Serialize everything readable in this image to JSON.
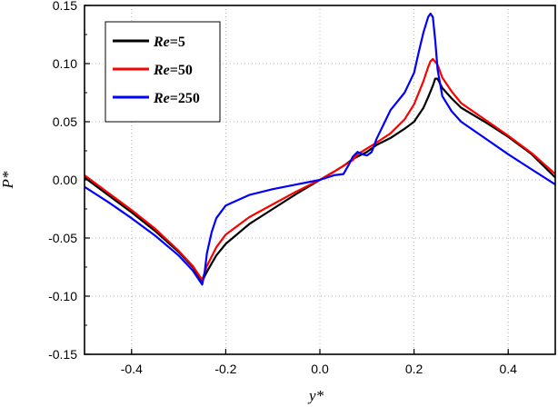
{
  "chart_data": {
    "type": "line",
    "xlabel": "y*",
    "ylabel": "P*",
    "xlim": [
      -0.5,
      0.5
    ],
    "ylim": [
      -0.15,
      0.15
    ],
    "xticks": [
      -0.4,
      -0.2,
      0.0,
      0.2,
      0.4
    ],
    "xtick_labels": [
      "-0.4",
      "-0.2",
      "0.0",
      "0.2",
      "0.4"
    ],
    "yticks": [
      -0.15,
      -0.1,
      -0.05,
      0.0,
      0.05,
      0.1,
      0.15
    ],
    "ytick_labels": [
      "-0.15",
      "-0.10",
      "-0.05",
      "0.00",
      "0.05",
      "0.10",
      "0.15"
    ],
    "grid": true,
    "legend_position": "top-left",
    "series": [
      {
        "name": "Re=5",
        "name_parts": [
          "Re",
          "=5"
        ],
        "color": "#000000",
        "x": [
          -0.5,
          -0.45,
          -0.4,
          -0.35,
          -0.3,
          -0.27,
          -0.25,
          -0.24,
          -0.22,
          -0.2,
          -0.15,
          -0.1,
          -0.05,
          0.0,
          0.03,
          0.05,
          0.07,
          0.09,
          0.1,
          0.12,
          0.15,
          0.18,
          0.2,
          0.22,
          0.23,
          0.24,
          0.245,
          0.25,
          0.26,
          0.28,
          0.3,
          0.35,
          0.4,
          0.45,
          0.5
        ],
        "y": [
          0.002,
          -0.013,
          -0.028,
          -0.044,
          -0.062,
          -0.075,
          -0.087,
          -0.079,
          -0.065,
          -0.055,
          -0.038,
          -0.025,
          -0.012,
          0.0,
          0.007,
          0.012,
          0.018,
          0.022,
          0.024,
          0.03,
          0.036,
          0.044,
          0.05,
          0.062,
          0.071,
          0.081,
          0.087,
          0.087,
          0.079,
          0.07,
          0.062,
          0.05,
          0.037,
          0.022,
          0.002
        ]
      },
      {
        "name": "Re=50",
        "name_parts": [
          "Re",
          "=50"
        ],
        "color": "#ff0000",
        "x": [
          -0.5,
          -0.45,
          -0.4,
          -0.35,
          -0.3,
          -0.27,
          -0.25,
          -0.24,
          -0.22,
          -0.2,
          -0.15,
          -0.1,
          -0.05,
          0.0,
          0.03,
          0.05,
          0.07,
          0.08,
          0.1,
          0.12,
          0.15,
          0.18,
          0.2,
          0.22,
          0.23,
          0.235,
          0.24,
          0.25,
          0.26,
          0.28,
          0.3,
          0.35,
          0.4,
          0.45,
          0.5
        ],
        "y": [
          0.004,
          -0.011,
          -0.026,
          -0.042,
          -0.061,
          -0.074,
          -0.086,
          -0.074,
          -0.058,
          -0.047,
          -0.032,
          -0.021,
          -0.01,
          0.0,
          0.007,
          0.012,
          0.017,
          0.022,
          0.027,
          0.032,
          0.04,
          0.052,
          0.065,
          0.085,
          0.097,
          0.102,
          0.104,
          0.099,
          0.088,
          0.076,
          0.066,
          0.052,
          0.038,
          0.023,
          0.005
        ]
      },
      {
        "name": "Re=250",
        "name_parts": [
          "Re",
          "=250"
        ],
        "color": "#0000ff",
        "x": [
          -0.5,
          -0.45,
          -0.4,
          -0.35,
          -0.3,
          -0.27,
          -0.25,
          -0.245,
          -0.24,
          -0.23,
          -0.22,
          -0.2,
          -0.15,
          -0.1,
          -0.05,
          0.0,
          0.03,
          0.05,
          0.06,
          0.07,
          0.08,
          0.09,
          0.1,
          0.11,
          0.12,
          0.15,
          0.18,
          0.2,
          0.21,
          0.22,
          0.23,
          0.235,
          0.24,
          0.245,
          0.25,
          0.26,
          0.28,
          0.3,
          0.35,
          0.4,
          0.45,
          0.5
        ],
        "y": [
          -0.006,
          -0.019,
          -0.033,
          -0.048,
          -0.065,
          -0.078,
          -0.09,
          -0.08,
          -0.063,
          -0.045,
          -0.033,
          -0.022,
          -0.013,
          -0.008,
          -0.004,
          0.0,
          0.004,
          0.005,
          0.012,
          0.02,
          0.024,
          0.022,
          0.021,
          0.024,
          0.035,
          0.06,
          0.075,
          0.092,
          0.11,
          0.127,
          0.14,
          0.143,
          0.14,
          0.12,
          0.095,
          0.072,
          0.059,
          0.05,
          0.036,
          0.022,
          0.009,
          -0.004
        ]
      }
    ]
  }
}
